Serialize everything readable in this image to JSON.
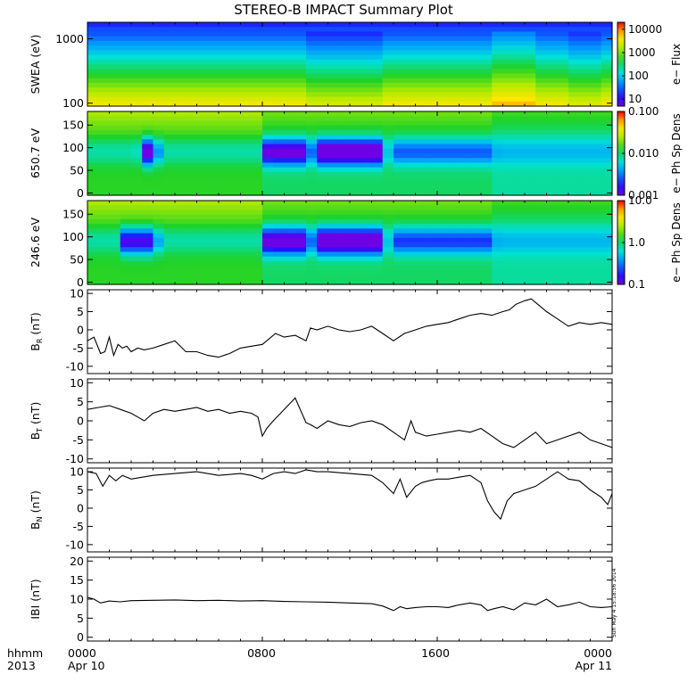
{
  "title": "STEREO-B IMPACT Summary Plot",
  "timestamp": "Sun May  4 15:18:56 2014",
  "x_axis": {
    "row1": [
      "0000",
      "0800",
      "1600",
      "0000"
    ],
    "row2": [
      "Apr 10",
      "",
      "",
      "Apr 11"
    ],
    "left_row1": "hhmm",
    "left_row2": "2013",
    "range_hours": [
      0,
      24
    ]
  },
  "chart_data": [
    {
      "type": "heatmap",
      "ylabel": "SWEA (eV)",
      "yscale": "log",
      "ylim": [
        90,
        1800
      ],
      "yticks": [
        {
          "v": 100,
          "label": "100"
        },
        {
          "v": 1000,
          "label": "1000"
        }
      ],
      "colorbar": {
        "label": "e− Flux",
        "scale": "log",
        "range": [
          5,
          20000
        ],
        "ticks": [
          "10",
          "100",
          "1000",
          "10000"
        ],
        "tick_values": [
          10,
          100,
          1000,
          10000
        ]
      }
    },
    {
      "type": "heatmap",
      "ylabel": "650.7 eV",
      "ylim": [
        -5,
        180
      ],
      "yticks": [
        {
          "v": 0,
          "label": "0"
        },
        {
          "v": 50,
          "label": "50"
        },
        {
          "v": 100,
          "label": "100"
        },
        {
          "v": 150,
          "label": "150"
        }
      ],
      "colorbar": {
        "label": "e− Ph Sp Dens",
        "scale": "log",
        "range": [
          0.001,
          0.1
        ],
        "ticks": [
          "0.001",
          "0.010",
          "0.100"
        ],
        "tick_values": [
          0.001,
          0.01,
          0.1
        ]
      },
      "depletions": [
        {
          "from": 2.4,
          "to": 3.2,
          "strength": 1.0
        },
        {
          "from": 8.1,
          "to": 10.0,
          "strength": 0.85
        },
        {
          "from": 10.3,
          "to": 13.6,
          "strength": 1.0
        },
        {
          "from": 14.0,
          "to": 18.6,
          "strength": 0.35
        }
      ]
    },
    {
      "type": "heatmap",
      "ylabel": "246.6 eV",
      "ylim": [
        -5,
        180
      ],
      "yticks": [
        {
          "v": 0,
          "label": "0"
        },
        {
          "v": 50,
          "label": "50"
        },
        {
          "v": 100,
          "label": "100"
        },
        {
          "v": 150,
          "label": "150"
        }
      ],
      "colorbar": {
        "label": "e− Ph Sp Dens",
        "scale": "log",
        "range": [
          0.1,
          10
        ],
        "ticks": [
          "0.1",
          "1.0",
          "10.0"
        ],
        "tick_values": [
          0.1,
          1,
          10
        ]
      },
      "depletions": [
        {
          "from": 1.5,
          "to": 3.2,
          "strength": 0.8
        },
        {
          "from": 8.1,
          "to": 10.2,
          "strength": 0.9
        },
        {
          "from": 10.3,
          "to": 13.6,
          "strength": 1.0
        },
        {
          "from": 14.0,
          "to": 18.6,
          "strength": 0.45
        }
      ]
    },
    {
      "type": "line",
      "ylabel": "B",
      "ylabel_sub": "R",
      "ylabel_unit": " (nT)",
      "ylim": [
        -12,
        11
      ],
      "yticks": [
        -10,
        -5,
        0,
        5,
        10
      ],
      "x": [
        0,
        0.3,
        0.6,
        0.8,
        1,
        1.2,
        1.4,
        1.6,
        1.8,
        2,
        2.3,
        2.6,
        3,
        3.5,
        4,
        4.5,
        5,
        5.5,
        6,
        6.5,
        7,
        7.5,
        8,
        8.3,
        8.6,
        9,
        9.5,
        10,
        10.2,
        10.5,
        11,
        11.5,
        12,
        12.5,
        13,
        13.5,
        14,
        14.5,
        15,
        15.5,
        16,
        16.5,
        17,
        17.5,
        18,
        18.5,
        19,
        19.3,
        19.6,
        20,
        20.3,
        20.6,
        21,
        21.5,
        22,
        22.5,
        23,
        23.5,
        24
      ],
      "y": [
        -3,
        -2,
        -6.5,
        -6,
        -2,
        -7,
        -4,
        -5,
        -4.5,
        -6,
        -5,
        -5.5,
        -5,
        -4,
        -3,
        -6,
        -6,
        -7,
        -7.5,
        -6.5,
        -5,
        -4.5,
        -4,
        -2.5,
        -1,
        -2,
        -1.5,
        -3,
        0.5,
        0,
        1,
        0,
        -0.5,
        0,
        1,
        -1,
        -3,
        -1,
        0,
        1,
        1.5,
        2,
        3,
        4,
        4.5,
        4,
        5,
        5.5,
        7,
        8,
        8.5,
        7,
        5,
        3,
        1,
        2,
        1.5,
        2,
        1.5
      ]
    },
    {
      "type": "line",
      "ylabel": "B",
      "ylabel_sub": "T",
      "ylabel_unit": " (nT)",
      "ylim": [
        -11,
        11
      ],
      "yticks": [
        -10,
        -5,
        0,
        5,
        10
      ],
      "x": [
        0,
        0.5,
        1,
        1.5,
        2,
        2.3,
        2.6,
        3,
        3.5,
        4,
        4.5,
        5,
        5.5,
        6,
        6.5,
        7,
        7.5,
        7.8,
        8,
        8.2,
        8.5,
        9,
        9.5,
        10,
        10.2,
        10.5,
        11,
        11.5,
        12,
        12.5,
        13,
        13.5,
        14,
        14.5,
        14.8,
        15,
        15.5,
        16,
        16.5,
        17,
        17.5,
        18,
        18.5,
        19,
        19.5,
        20,
        20.5,
        21,
        21.5,
        22,
        22.5,
        23,
        23.5,
        24
      ],
      "y": [
        3,
        3.5,
        4,
        3,
        2,
        1,
        0,
        2,
        3,
        2.5,
        3,
        3.5,
        2.5,
        3,
        2,
        2.5,
        2,
        1,
        -4,
        -2,
        0,
        3,
        6,
        -0.5,
        -1,
        -2,
        0,
        -1,
        -1.5,
        -0.5,
        0,
        -1,
        -3,
        -5,
        0,
        -3,
        -4,
        -3.5,
        -3,
        -2.5,
        -3,
        -2,
        -4,
        -6,
        -7,
        -5,
        -3,
        -6,
        -5,
        -4,
        -3,
        -5,
        -6,
        -7
      ]
    },
    {
      "type": "line",
      "ylabel": "B",
      "ylabel_sub": "N",
      "ylabel_unit": " (nT)",
      "ylim": [
        -12,
        11
      ],
      "yticks": [
        -10,
        -5,
        0,
        5,
        10
      ],
      "x": [
        0,
        0.4,
        0.7,
        1,
        1.3,
        1.6,
        2,
        3,
        4,
        5,
        6,
        7,
        7.5,
        8,
        8.5,
        9,
        9.5,
        10,
        10.5,
        11,
        12,
        13,
        13.5,
        14,
        14.3,
        14.6,
        15,
        15.3,
        15.6,
        16,
        16.5,
        17,
        17.5,
        18,
        18.3,
        18.6,
        18.9,
        19.2,
        19.5,
        20,
        20.5,
        21,
        21.5,
        22,
        22.5,
        23,
        23.5,
        23.8,
        24
      ],
      "y": [
        10,
        9.5,
        6,
        9,
        7.5,
        9,
        8,
        9,
        9.5,
        10,
        9,
        9.5,
        9,
        8,
        9.5,
        10,
        9.5,
        10.5,
        10,
        10,
        9.5,
        9,
        7,
        4,
        8,
        3,
        6,
        7,
        7.5,
        8,
        8,
        8.5,
        9,
        7,
        2,
        -1,
        -3,
        2,
        4,
        5,
        6,
        8,
        10,
        8,
        7.5,
        5,
        3,
        1,
        4
      ]
    },
    {
      "type": "line",
      "ylabel": "IBI",
      "ylabel_unit": " (nT)",
      "ylim": [
        -1,
        21
      ],
      "yticks": [
        0,
        5,
        10,
        15,
        20
      ],
      "x": [
        0,
        0.3,
        0.6,
        1,
        1.5,
        2,
        3,
        4,
        5,
        6,
        7,
        8,
        9,
        10,
        11,
        12,
        13,
        13.5,
        14,
        14.3,
        14.6,
        15,
        15.5,
        16,
        16.5,
        17,
        17.5,
        18,
        18.3,
        18.6,
        19,
        19.5,
        20,
        20.5,
        21,
        21.5,
        22,
        22.5,
        23,
        23.5,
        24
      ],
      "y": [
        10.5,
        10,
        9,
        9.5,
        9.3,
        9.6,
        9.7,
        9.8,
        9.6,
        9.7,
        9.5,
        9.6,
        9.4,
        9.3,
        9.2,
        9,
        8.8,
        8.2,
        7,
        8,
        7.5,
        7.8,
        8,
        8,
        7.8,
        8.5,
        9,
        8.5,
        7,
        7.5,
        8,
        7.2,
        9,
        8.5,
        10,
        8,
        8.5,
        9.2,
        8,
        7.8,
        8
      ]
    }
  ]
}
